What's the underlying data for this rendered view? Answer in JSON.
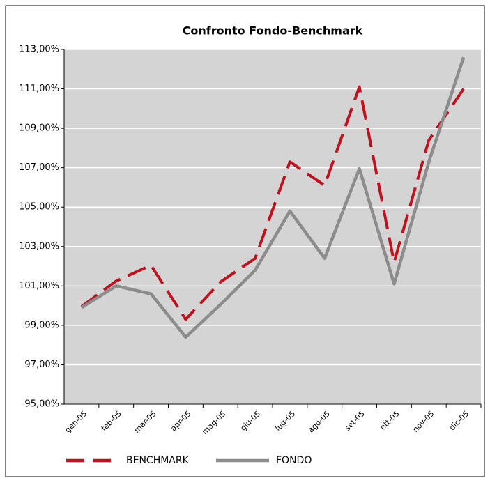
{
  "chart_data": {
    "type": "line",
    "title": "Confronto Fondo-Benchmark",
    "categories": [
      "gen-05",
      "feb-05",
      "mar-05",
      "apr-05",
      "mag-05",
      "giu-05",
      "lug-05",
      "ago-05",
      "set-05",
      "ott-05",
      "nov-05",
      "dic-05"
    ],
    "series": [
      {
        "name": "BENCHMARK",
        "color": "#c0111f",
        "dashed": true,
        "values": [
          99.95,
          101.25,
          102.05,
          99.3,
          101.2,
          102.4,
          107.3,
          106.1,
          111.1,
          102.2,
          108.4,
          111.0
        ]
      },
      {
        "name": "FONDO",
        "color": "#8c8c8c",
        "dashed": false,
        "values": [
          99.9,
          101.0,
          100.6,
          98.4,
          100.05,
          101.8,
          104.8,
          102.4,
          106.95,
          101.1,
          107.3,
          112.6
        ]
      }
    ],
    "ylim": [
      95,
      113
    ],
    "yticks": [
      {
        "value": 95,
        "label": "95,00%"
      },
      {
        "value": 97,
        "label": "97,00%"
      },
      {
        "value": 99,
        "label": "99,00%"
      },
      {
        "value": 101,
        "label": "101,00%"
      },
      {
        "value": 103,
        "label": "103,00%"
      },
      {
        "value": 105,
        "label": "105,00%"
      },
      {
        "value": 107,
        "label": "107,00%"
      },
      {
        "value": 109,
        "label": "109,00%"
      },
      {
        "value": 111,
        "label": "111,00%"
      },
      {
        "value": 113,
        "label": "113,00%"
      }
    ],
    "grid": true,
    "plot_background": "#d4d4d4",
    "legend": "bottom"
  }
}
